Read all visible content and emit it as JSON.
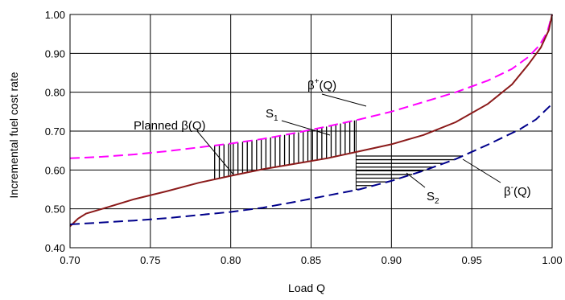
{
  "chart_data": {
    "type": "line",
    "xlabel": "Load Q",
    "ylabel": "Incremental fuel cost rate",
    "xlim": [
      0.7,
      1.0
    ],
    "ylim": [
      0.4,
      1.0
    ],
    "x_ticks": [
      "0.70",
      "0.75",
      "0.80",
      "0.85",
      "0.90",
      "0.95",
      "1.00"
    ],
    "y_ticks": [
      "0.40",
      "0.50",
      "0.60",
      "0.70",
      "0.80",
      "0.90",
      "1.00"
    ],
    "grid": true,
    "series": [
      {
        "name": "β⁺(Q)",
        "color": "#ff00ff",
        "dash": true,
        "x": [
          0.7,
          0.72,
          0.74,
          0.76,
          0.78,
          0.8,
          0.82,
          0.84,
          0.86,
          0.88,
          0.9,
          0.92,
          0.94,
          0.96,
          0.975,
          0.985,
          0.992,
          0.997,
          1.0
        ],
        "y": [
          0.63,
          0.634,
          0.64,
          0.648,
          0.658,
          0.668,
          0.68,
          0.695,
          0.712,
          0.73,
          0.75,
          0.775,
          0.8,
          0.83,
          0.86,
          0.89,
          0.92,
          0.955,
          1.0
        ]
      },
      {
        "name": "Planned β(Q)",
        "color": "#8b1a1a",
        "dash": false,
        "x": [
          0.7,
          0.705,
          0.71,
          0.72,
          0.74,
          0.76,
          0.78,
          0.8,
          0.82,
          0.84,
          0.86,
          0.88,
          0.9,
          0.92,
          0.94,
          0.96,
          0.975,
          0.985,
          0.993,
          0.998,
          1.0
        ],
        "y": [
          0.455,
          0.475,
          0.488,
          0.5,
          0.525,
          0.545,
          0.567,
          0.585,
          0.602,
          0.616,
          0.63,
          0.648,
          0.666,
          0.69,
          0.723,
          0.77,
          0.82,
          0.87,
          0.915,
          0.96,
          1.0
        ]
      },
      {
        "name": "β⁻(Q)",
        "color": "#00008b",
        "dash": true,
        "x": [
          0.7,
          0.72,
          0.74,
          0.76,
          0.78,
          0.8,
          0.82,
          0.84,
          0.86,
          0.88,
          0.9,
          0.92,
          0.94,
          0.96,
          0.98,
          0.99,
          1.0
        ],
        "y": [
          0.46,
          0.465,
          0.47,
          0.476,
          0.484,
          0.492,
          0.503,
          0.518,
          0.534,
          0.55,
          0.572,
          0.598,
          0.628,
          0.665,
          0.705,
          0.73,
          0.77
        ]
      }
    ],
    "annotations": {
      "beta_plus": "β",
      "beta_plus_sup": "+",
      "beta_plus_arg": "(Q)",
      "beta_minus": "β",
      "beta_minus_sup": "-",
      "beta_minus_arg": "(Q)",
      "planned": "Planned β(Q)",
      "s1": "S",
      "s1_sub": "1",
      "s2": "S",
      "s2_sub": "2"
    },
    "shaded_regions": [
      {
        "name": "S1",
        "hatch": "vertical",
        "x_range": [
          0.79,
          0.878
        ]
      },
      {
        "name": "S2",
        "hatch": "horizontal",
        "x_range": [
          0.878,
          0.945
        ]
      }
    ]
  }
}
